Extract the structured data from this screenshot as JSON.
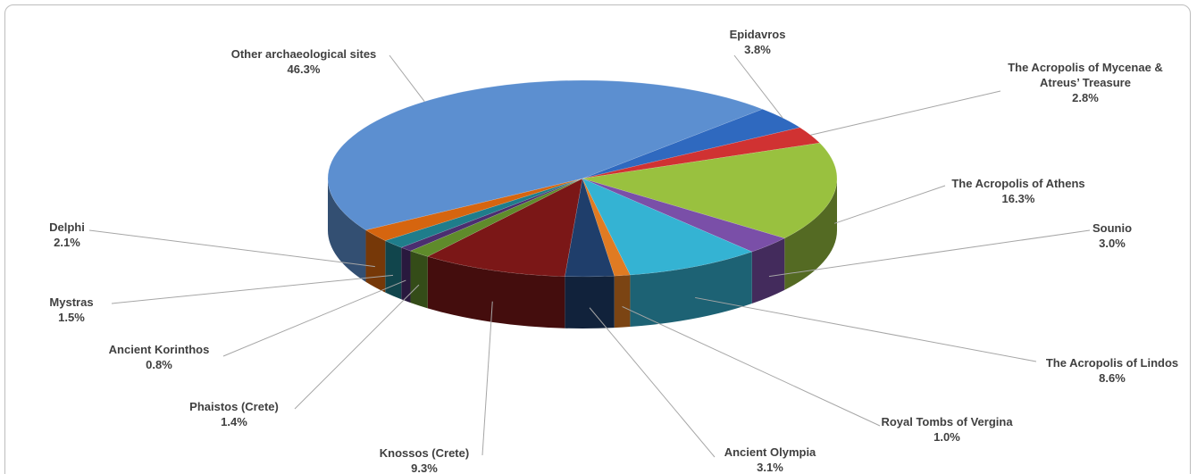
{
  "chart_data": {
    "type": "pie3d",
    "categories": [
      "Epidavros",
      "The Acropolis of Mycenae & Atreus’ Treasure",
      "The Acropolis of Athens",
      "Sounio",
      "The Acropolis of Lindos",
      "Royal Tombs of Vergina",
      "Ancient Olympia",
      "Knossos (Crete)",
      "Phaistos (Crete)",
      "Ancient Korinthos",
      "Mystras",
      "Delphi",
      "Other archaeological sites"
    ],
    "values": [
      3.8,
      2.8,
      16.3,
      3.0,
      8.6,
      1.0,
      3.1,
      9.3,
      1.4,
      0.8,
      1.5,
      2.1,
      46.3
    ],
    "value_labels": [
      "3.8%",
      "2.8%",
      "16.3%",
      "3.0%",
      "8.6%",
      "1.0%",
      "3.1%",
      "9.3%",
      "1.4%",
      "0.8%",
      "1.5%",
      "2.1%",
      "46.3%"
    ],
    "colors": [
      "#2f69bf",
      "#d03232",
      "#99c13f",
      "#7a4fa8",
      "#34b3d3",
      "#e07b22",
      "#1f3e6b",
      "#7b1717",
      "#5f8b2b",
      "#4b2e70",
      "#1f7d8b",
      "#d6650f",
      "#5c8fd0"
    ]
  }
}
